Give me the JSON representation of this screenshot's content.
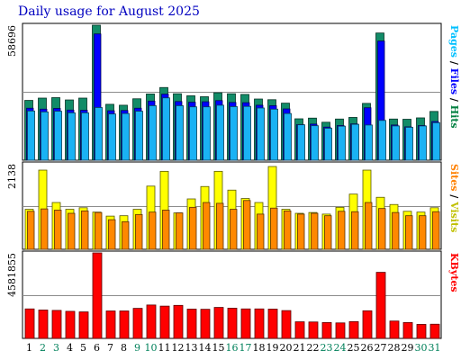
{
  "chart_data": {
    "type": "bar",
    "title": "Daily usage for August 2025",
    "categories": [
      "1",
      "2",
      "3",
      "4",
      "5",
      "6",
      "7",
      "8",
      "9",
      "10",
      "11",
      "12",
      "13",
      "14",
      "15",
      "16",
      "17",
      "18",
      "19",
      "20",
      "21",
      "22",
      "23",
      "24",
      "25",
      "26",
      "27",
      "28",
      "29",
      "30",
      "31"
    ],
    "weekend_days": [
      "2",
      "3",
      "9",
      "10",
      "16",
      "17",
      "23",
      "24",
      "30",
      "31"
    ],
    "panels": [
      {
        "name": "hits-files-pages",
        "ymax_label": "58696",
        "ylim": [
          0,
          58696
        ],
        "legend": [
          {
            "text": "Hits",
            "color": "#008040"
          },
          {
            "text": "Files",
            "color": "#0000ff"
          },
          {
            "text": "Pages",
            "color": "#00c0ff"
          }
        ],
        "separators": [
          "/",
          "/"
        ],
        "series": [
          {
            "name": "Hits",
            "color": "#128c68",
            "values": [
              26000,
              27000,
              27200,
              26200,
              27000,
              58696,
              24300,
              23900,
              26700,
              28800,
              31600,
              28900,
              28000,
              27600,
              29300,
              28900,
              28600,
              26600,
              26300,
              24800,
              18000,
              18300,
              16500,
              17900,
              18600,
              24700,
              55300,
              17900,
              17800,
              18400,
              21200
            ]
          },
          {
            "name": "Files",
            "color": "#0000ff",
            "values": [
              22600,
              22200,
              22500,
              21800,
              21700,
              54900,
              21500,
              21600,
              22600,
              25700,
              28700,
              25500,
              25200,
              25400,
              25900,
              25100,
              25000,
              23900,
              23700,
              22300,
              15500,
              15700,
              14400,
              15100,
              15800,
              22800,
              51800,
              15300,
              14500,
              15100,
              16800
            ]
          },
          {
            "name": "Pages",
            "color": "#1ab2f4",
            "values": [
              21400,
              21000,
              21300,
              20600,
              20600,
              22900,
              20100,
              20300,
              21300,
              23700,
              27100,
              23700,
              23200,
              23200,
              23900,
              23300,
              23400,
              22700,
              22200,
              20300,
              15400,
              15000,
              13900,
              14800,
              15600,
              15300,
              17300,
              14900,
              14300,
              14900,
              16300
            ]
          }
        ]
      },
      {
        "name": "visits-sites",
        "ymax_label": "2138",
        "ylim": [
          0,
          2138
        ],
        "legend": [
          {
            "text": "Visits",
            "color": "#c0c000"
          },
          {
            "text": "Sites",
            "color": "#ff8000"
          }
        ],
        "separators": [
          "/"
        ],
        "series": [
          {
            "name": "Visits",
            "color": "#ffff00",
            "values": [
              1000,
              1980,
              1170,
              1000,
              1040,
              930,
              830,
              840,
              1000,
              1580,
              1950,
              910,
              1260,
              1570,
              1950,
              1480,
              1270,
              1170,
              2070,
              1000,
              900,
              920,
              880,
              1050,
              1380,
              1980,
              1300,
              1120,
              950,
              930,
              1040
            ]
          },
          {
            "name": "Sites",
            "color": "#ff8800",
            "values": [
              950,
              1010,
              980,
              900,
              960,
              920,
              740,
              690,
              870,
              930,
              980,
              910,
              1050,
              1170,
              1150,
              1000,
              1220,
              880,
              1030,
              960,
              880,
              900,
              840,
              950,
              940,
              1170,
              1020,
              920,
              840,
              840,
              940
            ]
          }
        ]
      },
      {
        "name": "kbytes",
        "ymax_label": "4581855",
        "ylim": [
          0,
          4581855
        ],
        "legend": [
          {
            "text": "KBytes",
            "color": "#ff0000"
          }
        ],
        "separators": [],
        "series": [
          {
            "name": "KBytes",
            "color": "#ff0000",
            "values": [
              1580000,
              1520000,
              1500000,
              1450000,
              1420000,
              4581855,
              1470000,
              1470000,
              1610000,
              1790000,
              1730000,
              1770000,
              1570000,
              1560000,
              1660000,
              1620000,
              1580000,
              1580000,
              1570000,
              1490000,
              890000,
              880000,
              850000,
              830000,
              900000,
              1480000,
              3540000,
              930000,
              850000,
              750000,
              760000
            ]
          }
        ]
      }
    ]
  }
}
